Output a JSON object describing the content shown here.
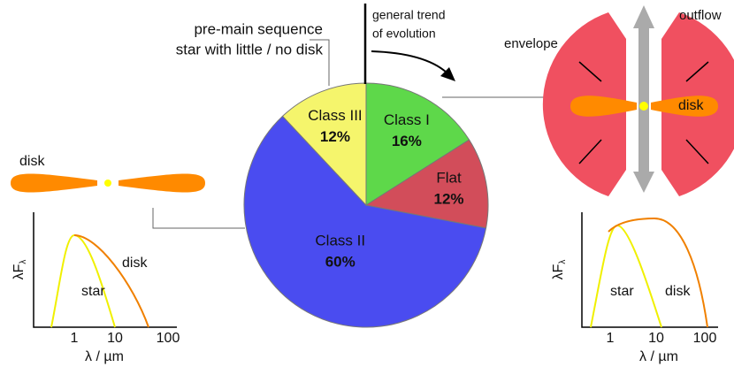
{
  "chart_data": {
    "type": "pie",
    "categories": [
      "Class I",
      "Flat",
      "Class II",
      "Class III"
    ],
    "values": [
      16,
      12,
      60,
      12
    ],
    "value_labels": [
      "16%",
      "12%",
      "60%",
      "12%"
    ],
    "colors": [
      "#5ed84a",
      "#d24d5a",
      "#4a4cf0",
      "#f5f56c"
    ],
    "start_angle": 0,
    "direction": "clockwise"
  },
  "figure": {
    "annotation_left": [
      "pre-main sequence",
      "star with little / no disk"
    ],
    "annotation_top": [
      "general trend",
      "of evolution"
    ],
    "left_diagram": {
      "disk": "disk"
    },
    "right_diagram": {
      "envelope": "envelope",
      "outflow": "outflow",
      "disk": "disk"
    },
    "sed_left": {
      "y_label": "λF",
      "y_sub": "λ",
      "x_label": "λ / µm",
      "xticks": [
        "1",
        "10",
        "100"
      ],
      "star": "star",
      "disk": "disk"
    },
    "sed_right": {
      "y_label": "λF",
      "y_sub": "λ",
      "x_label": "λ / µm",
      "xticks": [
        "1",
        "10",
        "100"
      ],
      "star": "star",
      "disk": "disk"
    }
  }
}
